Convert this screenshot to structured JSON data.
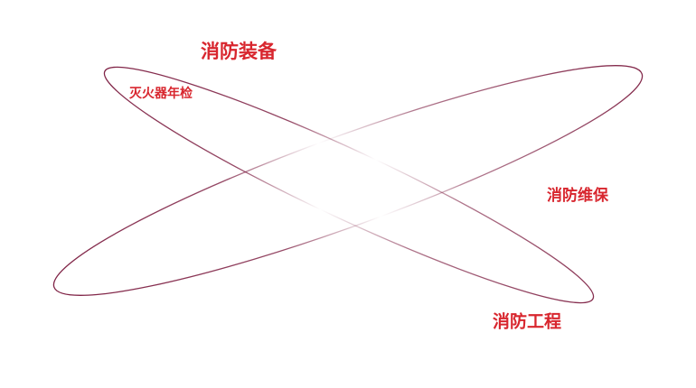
{
  "labels": [
    "消防装备",
    "灭火器年检",
    "消防维保",
    "消防工程"
  ]
}
